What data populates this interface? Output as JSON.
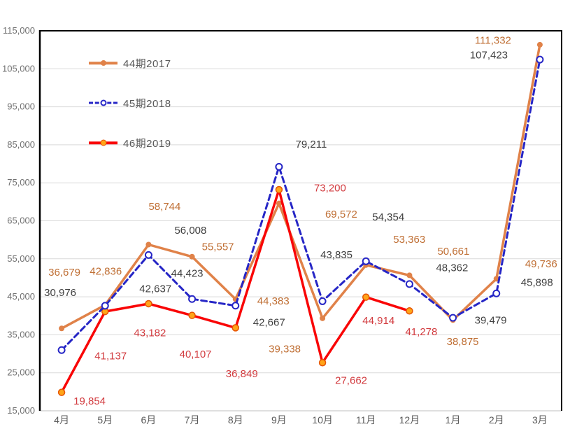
{
  "chart_data": {
    "type": "line",
    "title": "",
    "categories": [
      "4月",
      "5月",
      "6月",
      "7月",
      "8月",
      "9月",
      "10月",
      "11月",
      "12月",
      "1月",
      "2月",
      "3月"
    ],
    "y_axis": {
      "min": 15000,
      "max": 115000,
      "step": 10000
    },
    "grid": true,
    "legend_position": "inside-top-left",
    "series": [
      {
        "key": "44-2017",
        "name": "44期2017",
        "color": "#E08249",
        "label_color": "#BF6E33",
        "line_width": 3.5,
        "dash": null,
        "marker": {
          "type": "filled",
          "r": 4
        },
        "values": [
          36679,
          42836,
          58744,
          55557,
          44383,
          69572,
          39338,
          53363,
          50661,
          38875,
          49736,
          111332
        ],
        "label_offsets": [
          [
            4,
            -80
          ],
          [
            1,
            -48
          ],
          [
            23,
            -54
          ],
          [
            37,
            -14
          ],
          [
            54,
            3
          ],
          [
            89,
            16
          ],
          [
            -54,
            44
          ],
          [
            62,
            -36
          ],
          [
            63,
            -34
          ],
          [
            14,
            31
          ],
          [
            64,
            -21
          ],
          [
            -67,
            -6
          ]
        ]
      },
      {
        "key": "45-2018",
        "name": "45期2018",
        "color": "#2626C6",
        "label_color": "#3F3F3F",
        "line_width": 3,
        "dash": "8 5",
        "marker": {
          "type": "open",
          "r": 4.5,
          "stroke_width": 2
        },
        "values": [
          30976,
          42637,
          56008,
          44423,
          42667,
          79211,
          43835,
          54354,
          48362,
          39479,
          45898,
          107423
        ],
        "label_offsets": [
          [
            -2,
            -82
          ],
          [
            72,
            -24
          ],
          [
            60,
            -35
          ],
          [
            -7,
            -36
          ],
          [
            48,
            24
          ],
          [
            46,
            -32
          ],
          [
            20,
            -66
          ],
          [
            32,
            -63
          ],
          [
            61,
            -23
          ],
          [
            54,
            4
          ],
          [
            58,
            -15
          ],
          [
            -73,
            -6
          ]
        ]
      },
      {
        "key": "46-2019",
        "name": "46期2019",
        "color": "#F90506",
        "label_color": "#D23B3F",
        "line_width": 3.5,
        "dash": null,
        "marker": {
          "type": "filled",
          "r": 4.5,
          "fill": "#FFA519",
          "stroke": "#E65300",
          "stroke_width": 1.5
        },
        "values": [
          19854,
          41137,
          43182,
          40107,
          36849,
          73200,
          27662,
          44914,
          41278,
          null,
          null,
          null
        ],
        "label_offsets": [
          [
            40,
            13
          ],
          [
            8,
            64
          ],
          [
            2,
            42
          ],
          [
            5,
            56
          ],
          [
            9,
            66
          ],
          [
            73,
            -2
          ],
          [
            41,
            26
          ],
          [
            18,
            34
          ],
          [
            17,
            30
          ],
          null,
          null,
          null
        ]
      }
    ]
  },
  "colors": {
    "background": "#FFFFFF",
    "grid": "#D9D9D9",
    "axis_border": "#000000",
    "bottom_axis_line": "#BFBFBF",
    "y_tick_label": "#707070",
    "x_tick_label": "#595959",
    "legend_text": "#595959"
  }
}
